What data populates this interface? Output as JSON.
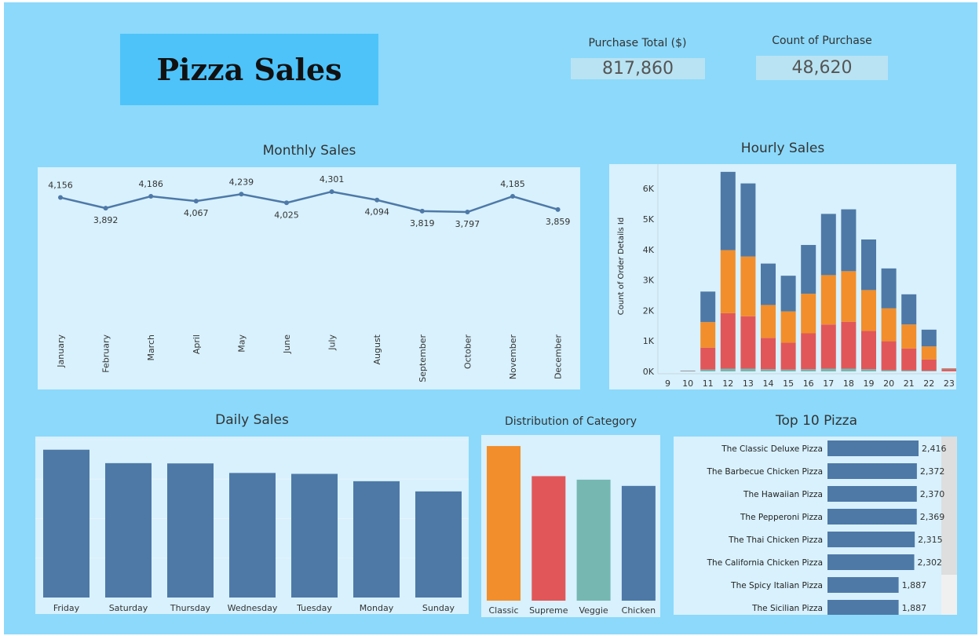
{
  "header": {
    "title": "Pizza Sales",
    "kpis": [
      {
        "label": "Purchase Total ($)",
        "value": "817,860"
      },
      {
        "label": "Count of Purchase",
        "value": "48,620"
      }
    ]
  },
  "chart_data": [
    {
      "id": "monthly",
      "type": "line",
      "title": "Monthly Sales",
      "categories": [
        "January",
        "February",
        "March",
        "April",
        "May",
        "June",
        "July",
        "August",
        "September",
        "October",
        "November",
        "December"
      ],
      "values": [
        4156,
        3892,
        4186,
        4067,
        4239,
        4025,
        4301,
        4094,
        3819,
        3797,
        4185,
        3859
      ],
      "labels": [
        "4,156",
        "3,892",
        "4,186",
        "4,067",
        "4,239",
        "4,025",
        "4,301",
        "4,094",
        "3,819",
        "3,797",
        "4,185",
        "3,859"
      ],
      "color": "#4e79a7"
    },
    {
      "id": "hourly",
      "type": "bar",
      "stacked": true,
      "title": "Hourly Sales",
      "ylabel": "Count of Order Details Id",
      "categories": [
        "9",
        "10",
        "11",
        "12",
        "13",
        "14",
        "15",
        "16",
        "17",
        "18",
        "19",
        "20",
        "21",
        "22",
        "23"
      ],
      "yticks": [
        "0K",
        "1K",
        "2K",
        "3K",
        "4K",
        "5K",
        "6K"
      ],
      "ylim": [
        0,
        6800
      ],
      "series": [
        {
          "color": "#76b7b2",
          "values": [
            1,
            4,
            60,
            90,
            90,
            70,
            60,
            70,
            90,
            90,
            70,
            40,
            30,
            20,
            4
          ]
        },
        {
          "color": "#e15759",
          "values": [
            0,
            4,
            720,
            1820,
            1720,
            1030,
            880,
            1180,
            1450,
            1540,
            1260,
            950,
            720,
            370,
            70
          ]
        },
        {
          "color": "#f28e2b",
          "values": [
            0,
            4,
            840,
            2070,
            1960,
            1080,
            1030,
            1300,
            1620,
            1660,
            1340,
            1080,
            790,
            430,
            14
          ]
        },
        {
          "color": "#4e79a7",
          "values": [
            0,
            12,
            1000,
            2570,
            2400,
            1360,
            1170,
            1600,
            2010,
            2030,
            1660,
            1310,
            990,
            550,
            12
          ]
        }
      ]
    },
    {
      "id": "daily",
      "type": "bar",
      "title": "Daily Sales",
      "categories": [
        "Friday",
        "Saturday",
        "Thursday",
        "Wednesday",
        "Tuesday",
        "Monday",
        "Sunday"
      ],
      "values": [
        8242,
        7493,
        7478,
        6946,
        6895,
        6485,
        5917
      ],
      "ylim": [
        0,
        8800
      ],
      "color": "#4e79a7"
    },
    {
      "id": "category",
      "type": "bar",
      "title": "Distribution of Category",
      "categories": [
        "Classic",
        "Supreme",
        "Veggie",
        "Chicken"
      ],
      "values": [
        14888,
        11987,
        11649,
        11050
      ],
      "ylim": [
        0,
        15800
      ],
      "colors": [
        "#f28e2b",
        "#e15759",
        "#76b7b2",
        "#4e79a7"
      ]
    },
    {
      "id": "top10",
      "type": "bar",
      "orientation": "horizontal",
      "title": "Top 10 Pizza",
      "categories": [
        "The Classic Deluxe Pizza",
        "The Barbecue Chicken Pizza",
        "The Hawaiian Pizza",
        "The Pepperoni Pizza",
        "The Thai Chicken Pizza",
        "The California Chicken Pizza",
        "The Spicy Italian Pizza",
        "The Sicilian Pizza"
      ],
      "values": [
        2416,
        2372,
        2370,
        2369,
        2315,
        2302,
        1887,
        1887
      ],
      "labels": [
        "2,416",
        "2,372",
        "2,370",
        "2,369",
        "2,315",
        "2,302",
        "1,887",
        "1,887"
      ],
      "xlim": [
        0,
        2500
      ],
      "color": "#4e79a7"
    }
  ]
}
